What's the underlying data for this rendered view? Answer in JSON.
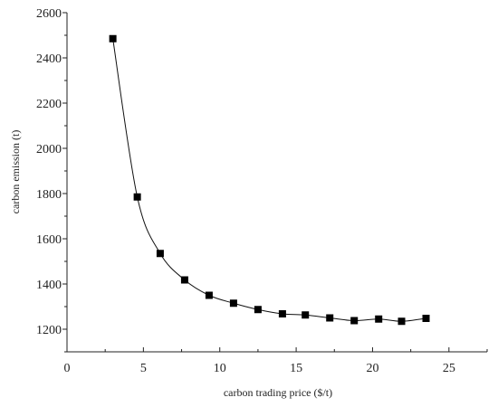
{
  "chart_data": {
    "type": "line",
    "xlabel": "carbon trading price ($/t)",
    "ylabel": "carbon emission (t)",
    "xlim": [
      0,
      27.5
    ],
    "ylim": [
      1100,
      2600
    ],
    "x_ticks": [
      "0",
      "5",
      "10",
      "15",
      "20",
      "25"
    ],
    "y_ticks": [
      "1200",
      "1400",
      "1600",
      "1800",
      "2000",
      "2200",
      "2400",
      "2600"
    ],
    "series": [
      {
        "marker": "square",
        "color": "#000000",
        "x": [
          3.0,
          4.6,
          6.1,
          7.7,
          9.3,
          10.9,
          12.5,
          14.1,
          15.6,
          17.2,
          18.8,
          20.4,
          21.9,
          23.5
        ],
        "y": [
          2485,
          1785,
          1535,
          1418,
          1350,
          1315,
          1287,
          1268,
          1263,
          1250,
          1238,
          1245,
          1235,
          1248
        ]
      }
    ]
  }
}
